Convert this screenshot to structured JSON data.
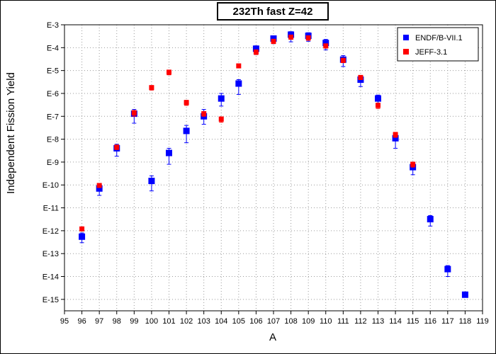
{
  "chart_data": {
    "type": "scatter",
    "title": "232Th fast Z=42",
    "xlabel": "A",
    "ylabel": "Independent Fission Yield",
    "xlim": [
      95,
      119
    ],
    "ylim_log10": [
      -15.5,
      -3
    ],
    "y_scale": "log",
    "grid": true,
    "legend_position": "top-right",
    "x_ticks": [
      "95",
      "96",
      "97",
      "98",
      "99",
      "100",
      "101",
      "102",
      "103",
      "104",
      "105",
      "106",
      "107",
      "108",
      "109",
      "110",
      "111",
      "112",
      "113",
      "114",
      "115",
      "116",
      "117",
      "118",
      "119"
    ],
    "y_ticks": [
      {
        "exp": -3,
        "label": "E-3"
      },
      {
        "exp": -4,
        "label": "E-4"
      },
      {
        "exp": -5,
        "label": "E-5"
      },
      {
        "exp": -6,
        "label": "E-6"
      },
      {
        "exp": -7,
        "label": "E-7"
      },
      {
        "exp": -8,
        "label": "E-8"
      },
      {
        "exp": -9,
        "label": "E-9"
      },
      {
        "exp": -10,
        "label": "E-10"
      },
      {
        "exp": -11,
        "label": "E-11"
      },
      {
        "exp": -12,
        "label": "E-12"
      },
      {
        "exp": -13,
        "label": "E-13"
      },
      {
        "exp": -14,
        "label": "E-14"
      },
      {
        "exp": -15,
        "label": "E-15"
      }
    ],
    "series": [
      {
        "name": "ENDF/B-VII.1",
        "color": "#0000ff",
        "marker": "square",
        "points": [
          {
            "x": 96,
            "y": 5.5e-13,
            "err_lo": 3e-13,
            "err_hi": 8e-13
          },
          {
            "x": 97,
            "y": 7e-11,
            "err_lo": 3.5e-11,
            "err_hi": 1e-10
          },
          {
            "x": 98,
            "y": 4e-09,
            "err_lo": 1.8e-09,
            "err_hi": 6e-09
          },
          {
            "x": 99,
            "y": 1.3e-07,
            "err_lo": 5e-08,
            "err_hi": 2e-07
          },
          {
            "x": 100,
            "y": 1.5e-10,
            "err_lo": 5.5e-11,
            "err_hi": 2.5e-10
          },
          {
            "x": 101,
            "y": 2.5e-09,
            "err_lo": 8e-10,
            "err_hi": 4e-09
          },
          {
            "x": 102,
            "y": 2.3e-08,
            "err_lo": 7e-09,
            "err_hi": 4e-08
          },
          {
            "x": 103,
            "y": 1e-07,
            "err_lo": 4.5e-08,
            "err_hi": 2e-07
          },
          {
            "x": 104,
            "y": 6e-07,
            "err_lo": 2.8e-07,
            "err_hi": 1e-06
          },
          {
            "x": 105,
            "y": 2.7e-06,
            "err_lo": 9e-07,
            "err_hi": 4e-06
          },
          {
            "x": 106,
            "y": 9e-05,
            "err_lo": 5e-05,
            "err_hi": 0.00012
          },
          {
            "x": 107,
            "y": 0.00025,
            "err_lo": 0.00015,
            "err_hi": 0.00032
          },
          {
            "x": 108,
            "y": 0.00037,
            "err_lo": 0.00018,
            "err_hi": 0.0005
          },
          {
            "x": 109,
            "y": 0.00033,
            "err_lo": 0.00019,
            "err_hi": 0.00045
          },
          {
            "x": 110,
            "y": 0.00016,
            "err_lo": 8e-05,
            "err_hi": 0.00023
          },
          {
            "x": 111,
            "y": 3e-05,
            "err_lo": 1.5e-05,
            "err_hi": 4.5e-05
          },
          {
            "x": 112,
            "y": 4e-06,
            "err_lo": 2e-06,
            "err_hi": 6e-06
          },
          {
            "x": 113,
            "y": 6e-07,
            "err_lo": 3e-07,
            "err_hi": 8.5e-07
          },
          {
            "x": 114,
            "y": 1.1e-08,
            "err_lo": 4e-09,
            "err_hi": 1.9e-08
          },
          {
            "x": 115,
            "y": 6e-10,
            "err_lo": 2.8e-10,
            "err_hi": 8.5e-10
          },
          {
            "x": 116,
            "y": 3.2e-12,
            "err_lo": 1.6e-12,
            "err_hi": 4.6e-12
          },
          {
            "x": 117,
            "y": 2.1e-14,
            "err_lo": 1e-14,
            "err_hi": 3e-14
          },
          {
            "x": 118,
            "y": 1.6e-15,
            "err_lo": 1.5e-15,
            "err_hi": 2.1e-15
          }
        ]
      },
      {
        "name": "JEFF-3.1",
        "color": "#ff0000",
        "marker": "square",
        "points": [
          {
            "x": 96,
            "y": 1.2e-12,
            "err_lo": 1e-12,
            "err_hi": 1.4e-12
          },
          {
            "x": 97,
            "y": 9.5e-11,
            "err_lo": 8e-11,
            "err_hi": 1.1e-10
          },
          {
            "x": 98,
            "y": 4.5e-09,
            "err_lo": 3.5e-09,
            "err_hi": 5.5e-09
          },
          {
            "x": 99,
            "y": 1.4e-07,
            "err_lo": 1e-07,
            "err_hi": 1.8e-07
          },
          {
            "x": 100,
            "y": 1.8e-06,
            "err_lo": 1.4e-06,
            "err_hi": 2.2e-06
          },
          {
            "x": 101,
            "y": 8.5e-06,
            "err_lo": 6.5e-06,
            "err_hi": 1.05e-05
          },
          {
            "x": 102,
            "y": 4e-07,
            "err_lo": 3e-07,
            "err_hi": 5e-07
          },
          {
            "x": 103,
            "y": 1.3e-07,
            "err_lo": 1e-07,
            "err_hi": 1.6e-07
          },
          {
            "x": 104,
            "y": 7.5e-08,
            "err_lo": 5.5e-08,
            "err_hi": 9.5e-08
          },
          {
            "x": 105,
            "y": 1.6e-05,
            "err_lo": 1.3e-05,
            "err_hi": 1.9e-05
          },
          {
            "x": 106,
            "y": 6.5e-05,
            "err_lo": 5e-05,
            "err_hi": 8e-05
          },
          {
            "x": 107,
            "y": 0.00019,
            "err_lo": 0.00015,
            "err_hi": 0.00023
          },
          {
            "x": 108,
            "y": 0.00029,
            "err_lo": 0.00023,
            "err_hi": 0.00035
          },
          {
            "x": 109,
            "y": 0.00027,
            "err_lo": 0.00021,
            "err_hi": 0.00033
          },
          {
            "x": 110,
            "y": 0.00012,
            "err_lo": 9.5e-05,
            "err_hi": 0.000145
          },
          {
            "x": 111,
            "y": 2.8e-05,
            "err_lo": 2.2e-05,
            "err_hi": 3.4e-05
          },
          {
            "x": 112,
            "y": 5e-06,
            "err_lo": 4e-06,
            "err_hi": 6e-06
          },
          {
            "x": 113,
            "y": 3e-07,
            "err_lo": 2.2e-07,
            "err_hi": 3.8e-07
          },
          {
            "x": 114,
            "y": 1.6e-08,
            "err_lo": 1.2e-08,
            "err_hi": 2e-08
          },
          {
            "x": 115,
            "y": 8e-10,
            "err_lo": 6e-10,
            "err_hi": 1e-09
          }
        ]
      }
    ]
  }
}
